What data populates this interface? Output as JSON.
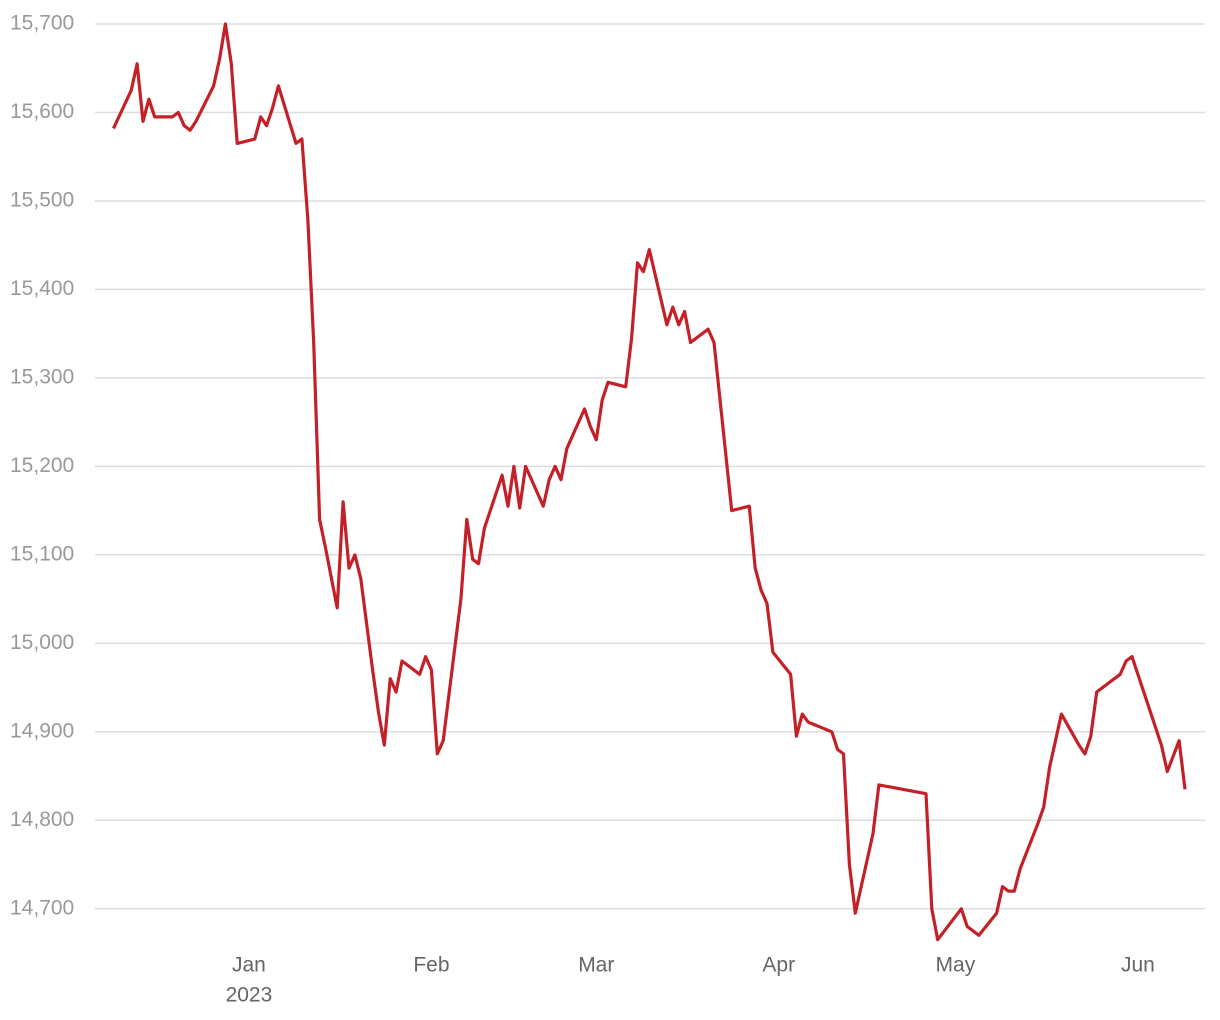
{
  "chart_data": {
    "type": "line",
    "color": "#c42027",
    "grid": true,
    "x": [
      -23,
      -20,
      -19,
      -18,
      -17,
      -16,
      -13,
      -12,
      -11,
      -10,
      -9,
      -6,
      -5,
      -4,
      -3,
      -2,
      1,
      2,
      3,
      4,
      5,
      8,
      9,
      10,
      11,
      12,
      13,
      15,
      16,
      17,
      18,
      19,
      21,
      22,
      23,
      24,
      25,
      26,
      29,
      30,
      31,
      32,
      33,
      36,
      37,
      38,
      39,
      40,
      43,
      44,
      45,
      46,
      47,
      50,
      51,
      52,
      53,
      54,
      57,
      58,
      59,
      60,
      61,
      64,
      65,
      66,
      67,
      68,
      71,
      72,
      73,
      74,
      75,
      78,
      79,
      82,
      85,
      86,
      87,
      88,
      89,
      92,
      93,
      94,
      95,
      99,
      100,
      101,
      102,
      103,
      106,
      107,
      115,
      116,
      117,
      121,
      122,
      124,
      127,
      128,
      129,
      130,
      131,
      134,
      135,
      136,
      138,
      141,
      142,
      143,
      144,
      148,
      149,
      150,
      155,
      156,
      158,
      159
    ],
    "values": [
      15582,
      15625,
      15655,
      15590,
      15615,
      15595,
      15595,
      15600,
      15585,
      15580,
      15590,
      15630,
      15660,
      15700,
      15655,
      15565,
      15570,
      15595,
      15585,
      15605,
      15630,
      15565,
      15570,
      15480,
      15340,
      15140,
      15108,
      15040,
      15160,
      15085,
      15100,
      15073,
      14970,
      14922,
      14885,
      14960,
      14945,
      14980,
      14965,
      14985,
      14970,
      14875,
      14890,
      15050,
      15140,
      15095,
      15090,
      15130,
      15190,
      15155,
      15200,
      15153,
      15200,
      15155,
      15185,
      15200,
      15185,
      15220,
      15265,
      15245,
      15230,
      15275,
      15295,
      15290,
      15345,
      15430,
      15420,
      15445,
      15360,
      15380,
      15360,
      15375,
      15340,
      15355,
      15340,
      15150,
      15155,
      15085,
      15060,
      15045,
      14990,
      14965,
      14895,
      14920,
      14911,
      14900,
      14880,
      14875,
      14750,
      14695,
      14785,
      14840,
      14830,
      14700,
      14665,
      14700,
      14680,
      14670,
      14695,
      14725,
      14720,
      14720,
      14745,
      14796,
      14815,
      14860,
      14920,
      14885,
      14875,
      14895,
      14945,
      14965,
      14980,
      14985,
      14885,
      14855,
      14890,
      14835
    ],
    "xlim": [
      -25.3,
      162.4
    ],
    "xticks": [
      {
        "value": 0,
        "label": "Jan",
        "sublabel": "2023"
      },
      {
        "value": 31,
        "label": "Feb"
      },
      {
        "value": 59,
        "label": "Mar"
      },
      {
        "value": 90,
        "label": "Apr"
      },
      {
        "value": 120,
        "label": "May"
      },
      {
        "value": 151,
        "label": "Jun"
      }
    ],
    "ylim": [
      14650,
      15700
    ],
    "yticks": [
      {
        "value": 14700,
        "label": "14,700"
      },
      {
        "value": 14800,
        "label": "14,800"
      },
      {
        "value": 14900,
        "label": "14,900"
      },
      {
        "value": 15000,
        "label": "15,000"
      },
      {
        "value": 15100,
        "label": "15,100"
      },
      {
        "value": 15200,
        "label": "15,200"
      },
      {
        "value": 15300,
        "label": "15,300"
      },
      {
        "value": 15400,
        "label": "15,400"
      },
      {
        "value": 15500,
        "label": "15,500"
      },
      {
        "value": 15600,
        "label": "15,600"
      },
      {
        "value": 15700,
        "label": "15,700"
      }
    ]
  }
}
